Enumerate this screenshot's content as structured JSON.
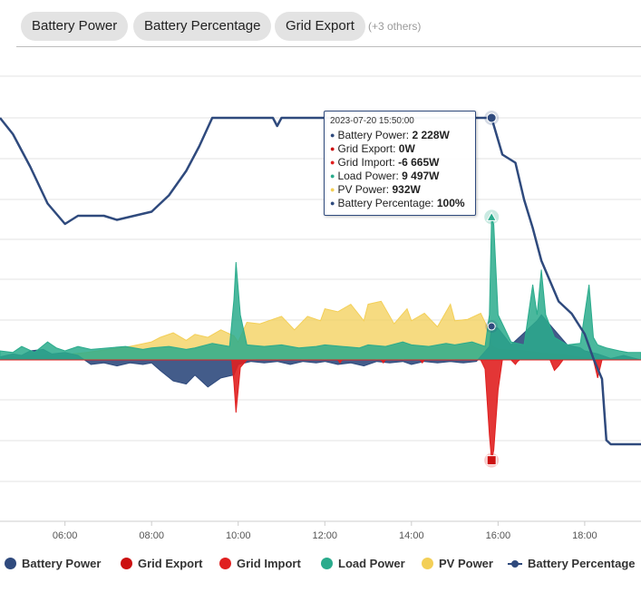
{
  "chips": [
    {
      "label": "Battery Power"
    },
    {
      "label": "Battery Percentage"
    },
    {
      "label": "Grid Export"
    }
  ],
  "chips_more": "(+3 others)",
  "tooltip": {
    "title": "2023-07-20 15:50:00",
    "rows": [
      {
        "label": "Battery Power: ",
        "value": "2 228W",
        "color": "#2f4a7d"
      },
      {
        "label": "Grid Export: ",
        "value": "0W",
        "color": "#cc1111"
      },
      {
        "label": "Grid Import: ",
        "value": "-6 665W",
        "color": "#e02020"
      },
      {
        "label": "Load Power: ",
        "value": "9 497W",
        "color": "#2aab8c"
      },
      {
        "label": "PV Power: ",
        "value": "932W",
        "color": "#f3cf57"
      },
      {
        "label": "Battery Percentage: ",
        "value": "100%",
        "color": "#2f4a7d"
      }
    ]
  },
  "legend": [
    {
      "label": "Battery Power",
      "color": "#2f4a7d"
    },
    {
      "label": "Grid Export",
      "color": "#cc1111"
    },
    {
      "label": "Grid Import",
      "color": "#e02020"
    },
    {
      "label": "Load Power",
      "color": "#2aab8c"
    },
    {
      "label": "PV Power",
      "color": "#f3cf57"
    },
    {
      "label": "Battery Percentage",
      "color": "#2f4a7d"
    }
  ],
  "chart_data": {
    "type": "area",
    "x_unit": "hours",
    "x_ticks": [
      "06:00",
      "08:00",
      "10:00",
      "12:00",
      "14:00",
      "16:00",
      "18:00"
    ],
    "x_tick_values": [
      6,
      8,
      10,
      12,
      14,
      16,
      18
    ],
    "xlim": [
      4.5,
      19.3
    ],
    "grid": "horizontal",
    "legend_position": "bottom",
    "title": "",
    "xlabel": "",
    "ylabel": "",
    "series": [
      {
        "name": "PV Power",
        "kind": "area",
        "color": "#f3cf57",
        "x": [
          4.5,
          5,
          5.5,
          6,
          6.5,
          7,
          7.5,
          8,
          8.2,
          8.5,
          8.8,
          9,
          9.3,
          9.6,
          9.9,
          10,
          10.2,
          10.5,
          10.8,
          11,
          11.3,
          11.6,
          11.9,
          12,
          12.3,
          12.6,
          12.9,
          13,
          13.3,
          13.6,
          13.9,
          14,
          14.3,
          14.6,
          14.9,
          15,
          15.3,
          15.6,
          15.8,
          15.85,
          16,
          16.3,
          16.6,
          16.9,
          17,
          17.3,
          17.6,
          17.9,
          18,
          18.3,
          18.6,
          18.9,
          19.3
        ],
        "values": [
          150,
          250,
          300,
          350,
          500,
          700,
          900,
          1200,
          1500,
          1800,
          1300,
          1700,
          1500,
          2000,
          1600,
          1200,
          2500,
          2400,
          2700,
          2900,
          2000,
          2900,
          2600,
          3400,
          3200,
          3700,
          2600,
          3700,
          3900,
          2400,
          3400,
          2600,
          3100,
          2200,
          3700,
          2600,
          2700,
          3100,
          1900,
          932,
          700,
          650,
          600,
          500,
          450,
          400,
          300,
          200,
          150,
          100,
          60,
          30,
          0
        ]
      },
      {
        "name": "Battery Power",
        "kind": "area",
        "color": "#2f4a7d",
        "x": [
          4.5,
          4.8,
          5,
          5.2,
          5.5,
          5.7,
          6,
          6.3,
          6.6,
          6.9,
          7.2,
          7.5,
          7.8,
          8,
          8.2,
          8.5,
          8.8,
          9,
          9.3,
          9.6,
          9.9,
          10,
          10.3,
          10.6,
          10.9,
          11.2,
          11.5,
          11.8,
          12,
          12.3,
          12.6,
          12.9,
          13.2,
          13.5,
          13.8,
          14,
          14.3,
          14.6,
          14.9,
          15.2,
          15.5,
          15.8,
          15.85,
          16,
          16.3,
          16.6,
          16.9,
          17,
          17.3,
          17.6,
          17.9,
          18,
          18.3,
          18.6,
          18.9,
          19.3
        ],
        "values": [
          200,
          400,
          300,
          600,
          700,
          400,
          500,
          300,
          -300,
          -200,
          -400,
          -200,
          -300,
          -200,
          -700,
          -1400,
          -1600,
          -1000,
          -1800,
          -1200,
          -1000,
          -300,
          -100,
          -200,
          -100,
          -300,
          -100,
          -200,
          -100,
          -300,
          -200,
          -400,
          -100,
          -200,
          -100,
          -300,
          -100,
          -200,
          -100,
          -200,
          -100,
          900,
          2228,
          2100,
          1000,
          1800,
          2600,
          3000,
          2000,
          1000,
          800,
          600,
          400,
          100,
          300,
          0
        ]
      },
      {
        "name": "Load Power",
        "kind": "area",
        "color": "#2aab8c",
        "x": [
          4.5,
          4.8,
          5,
          5.3,
          5.6,
          5.8,
          6,
          6.3,
          6.6,
          7,
          7.4,
          7.8,
          8,
          8.4,
          8.8,
          9,
          9.4,
          9.8,
          9.9,
          9.95,
          10.05,
          10.2,
          10.6,
          11,
          11.4,
          11.8,
          12,
          12.4,
          12.8,
          13,
          13.4,
          13.8,
          14,
          14.4,
          14.8,
          15,
          15.4,
          15.7,
          15.8,
          15.85,
          15.9,
          16,
          16.3,
          16.6,
          16.8,
          16.9,
          17,
          17.1,
          17.3,
          17.6,
          17.9,
          18.1,
          18.2,
          18.3,
          18.5,
          18.8,
          19,
          19.3
        ],
        "values": [
          600,
          500,
          900,
          500,
          1200,
          800,
          600,
          900,
          700,
          800,
          900,
          700,
          800,
          900,
          700,
          800,
          1100,
          900,
          4000,
          6500,
          3000,
          1000,
          900,
          1000,
          800,
          900,
          1000,
          900,
          800,
          1000,
          900,
          1200,
          1000,
          900,
          1100,
          1000,
          1200,
          900,
          3000,
          9497,
          9000,
          3000,
          1200,
          1000,
          5000,
          3000,
          6000,
          3000,
          1500,
          1000,
          1100,
          5000,
          1500,
          1000,
          800,
          600,
          500,
          500
        ]
      },
      {
        "name": "Grid Export",
        "kind": "area",
        "color": "#cc1111",
        "x": [
          4.5,
          19.3
        ],
        "values": [
          0,
          0
        ]
      },
      {
        "name": "Grid Import",
        "kind": "area",
        "color": "#e02020",
        "x": [
          4.5,
          6,
          9.85,
          9.9,
          9.95,
          10,
          10.05,
          10.2,
          12.3,
          12.35,
          12.4,
          13.3,
          13.35,
          13.4,
          14.2,
          14.25,
          14.3,
          15.6,
          15.7,
          15.8,
          15.85,
          15.9,
          16,
          16.1,
          16.3,
          16.4,
          16.45,
          16.5,
          17.2,
          17.3,
          17.4,
          17.5,
          18.2,
          18.3,
          18.4,
          19.3
        ],
        "values": [
          0,
          0,
          0,
          -1500,
          -3500,
          -2000,
          -500,
          0,
          0,
          -200,
          0,
          0,
          -200,
          0,
          0,
          -200,
          0,
          0,
          -600,
          -5000,
          -6665,
          -6000,
          -2000,
          0,
          0,
          -300,
          -100,
          0,
          0,
          -700,
          -400,
          0,
          0,
          -1200,
          0,
          0
        ]
      },
      {
        "name": "Battery Percentage",
        "kind": "line",
        "color": "#2f4a7d",
        "unit": "%",
        "x": [
          4.5,
          4.8,
          5.2,
          5.6,
          6,
          6.3,
          6.6,
          6.9,
          7.2,
          7.6,
          8,
          8.4,
          8.8,
          9.1,
          9.4,
          10.8,
          10.9,
          11,
          12,
          14,
          15.5,
          15.85,
          16.1,
          16.4,
          16.6,
          16.8,
          17,
          17.4,
          17.7,
          18,
          18.2,
          18.4,
          18.5,
          18.6,
          19,
          19.3
        ],
        "values": [
          100,
          96,
          88,
          79,
          74,
          76,
          76,
          76,
          75,
          76,
          77,
          81,
          87,
          93,
          100,
          100,
          98,
          100,
          100,
          100,
          100,
          100,
          91,
          89,
          80,
          73,
          65,
          55,
          52,
          47,
          41,
          36,
          21,
          20,
          20,
          20
        ]
      }
    ],
    "highlight": {
      "x": 15.85,
      "label": "2023-07-20 15:50:00"
    }
  }
}
